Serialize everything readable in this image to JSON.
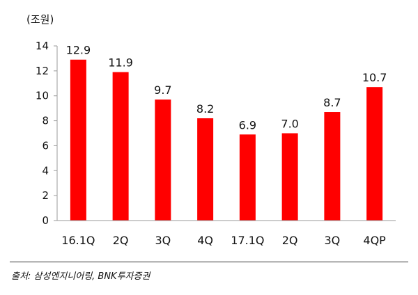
{
  "chart_data": {
    "type": "bar",
    "unit_label": "(조원)",
    "categories": [
      "16.1Q",
      "2Q",
      "3Q",
      "4Q",
      "17.1Q",
      "2Q",
      "3Q",
      "4QP"
    ],
    "values": [
      12.9,
      11.9,
      9.7,
      8.2,
      6.9,
      7.0,
      8.7,
      10.7
    ],
    "value_labels": [
      "12.9",
      "11.9",
      "9.7",
      "8.2",
      "6.9",
      "7.0",
      "8.7",
      "10.7"
    ],
    "ylim": [
      0,
      14
    ],
    "yticks": [
      0,
      2,
      4,
      6,
      8,
      10,
      12,
      14
    ],
    "grid": false,
    "bar_color": "#ff0000",
    "axis_color": "#999999"
  },
  "source": "출처: 삼성엔지니어링, BNK투자증권"
}
